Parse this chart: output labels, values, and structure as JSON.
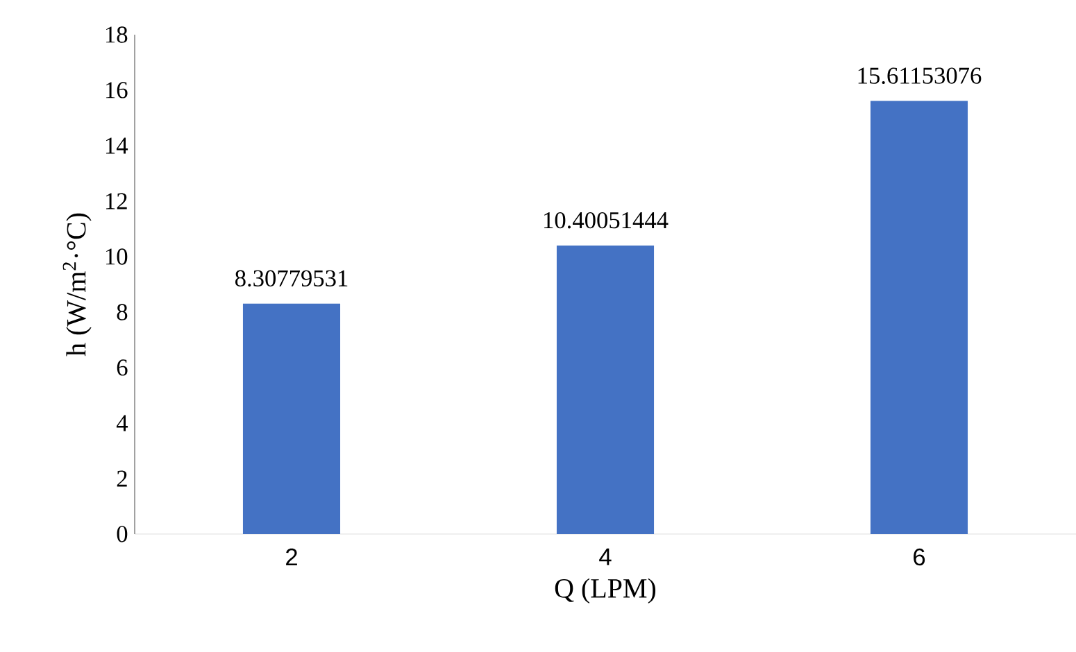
{
  "chart_data": {
    "type": "bar",
    "xlabel": "Q (LPM)",
    "ylabel": "h (W/m$^{2}$·°C)",
    "categories": [
      "2",
      "4",
      "6"
    ],
    "values": [
      8.30779531,
      10.40051444,
      15.61153076
    ],
    "color": "#4472c4",
    "ylim": [
      0,
      18
    ],
    "yticks": [
      0,
      2,
      4,
      6,
      8,
      10,
      12,
      14,
      16,
      18
    ],
    "data_labels": true,
    "grid": false
  }
}
